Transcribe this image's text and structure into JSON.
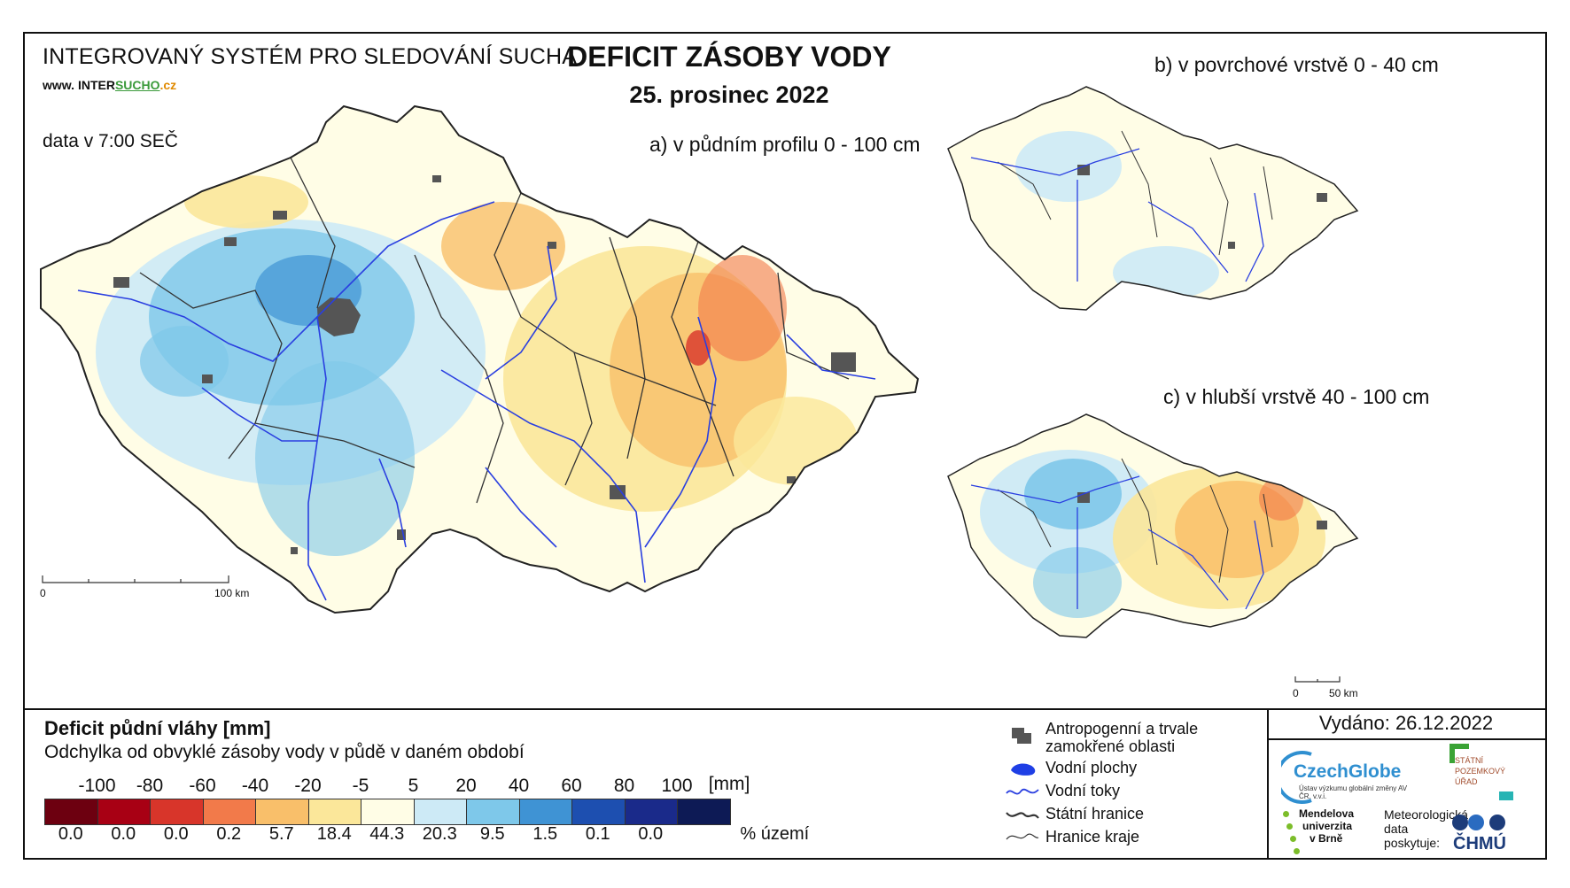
{
  "header": {
    "system": "INTEGROVANÝ SYSTÉM PRO SLEDOVÁNÍ SUCHA",
    "url_prefix": "www.",
    "url_inter": "INTER",
    "url_sucho": "SUCHO",
    "url_suffix": ".cz",
    "data_time": "data v 7:00 SEČ",
    "title": "DEFICIT ZÁSOBY VODY",
    "date": "25. prosinec 2022"
  },
  "maps": {
    "a_label": "a) v půdním profilu 0 - 100 cm",
    "b_label": "b) v povrchové vrstvě 0 - 40 cm",
    "c_label": "c) v hlubší vrstvě 40 - 100 cm",
    "main_scale": {
      "start": "0",
      "end": "100 km"
    },
    "small_scale": {
      "start": "0",
      "end": "50 km"
    }
  },
  "legend": {
    "title": "Deficit půdní vláhy  [mm]",
    "subtitle": "Odchylka od obvyklé zásoby vody v půdě v daném období",
    "ticks": [
      "-100",
      "-80",
      "-60",
      "-40",
      "-20",
      "-5",
      "5",
      "20",
      "40",
      "60",
      "80",
      "100"
    ],
    "tick_unit": "[mm]",
    "classes": [
      {
        "color": "#6d0010",
        "pct": "0.0"
      },
      {
        "color": "#a80014",
        "pct": "0.0"
      },
      {
        "color": "#d8352a",
        "pct": "0.0"
      },
      {
        "color": "#f27a4a",
        "pct": "0.2"
      },
      {
        "color": "#f9bf6a",
        "pct": "5.7"
      },
      {
        "color": "#fbe79a",
        "pct": "18.4"
      },
      {
        "color": "#fffde6",
        "pct": "44.3"
      },
      {
        "color": "#cdeaf6",
        "pct": "20.3"
      },
      {
        "color": "#7ec8ea",
        "pct": "9.5"
      },
      {
        "color": "#3f93d4",
        "pct": "1.5"
      },
      {
        "color": "#1d4fb0",
        "pct": "0.1"
      },
      {
        "color": "#1a2a8a",
        "pct": "0.0"
      },
      {
        "color": "#0d1a55",
        "pct": ""
      }
    ],
    "pct_unit": "% území",
    "symbols": [
      {
        "icon": "urban-area-icon",
        "label": "Antropogenní a trvale zamokřené oblasti"
      },
      {
        "icon": "water-body-icon",
        "label": "Vodní plochy"
      },
      {
        "icon": "river-icon",
        "label": "Vodní toky"
      },
      {
        "icon": "state-border-icon",
        "label": "Státní hranice"
      },
      {
        "icon": "region-border-icon",
        "label": "Hranice kraje"
      }
    ]
  },
  "issued": "Vydáno: 26.12.2022",
  "logos": {
    "czechglobe": "CzechGlobe",
    "czechglobe_sub": "Ústav výzkumu globální změny AV ČR, v.v.i.",
    "spu_line1": "STÁTNÍ",
    "spu_line2": "POZEMKOVÝ",
    "spu_line3": "ÚŘAD",
    "mendel_line1": "Mendelova",
    "mendel_line2": "univerzita",
    "mendel_line3": "v Brně",
    "chmu_text1": "Meteorologická",
    "chmu_text2": "data",
    "chmu_text3": "poskytuje:",
    "chmu": "ČHMÚ"
  },
  "colors": {
    "river": "#2a3fe0",
    "border": "#222222",
    "urban": "#555555",
    "background": "#fffde6"
  }
}
